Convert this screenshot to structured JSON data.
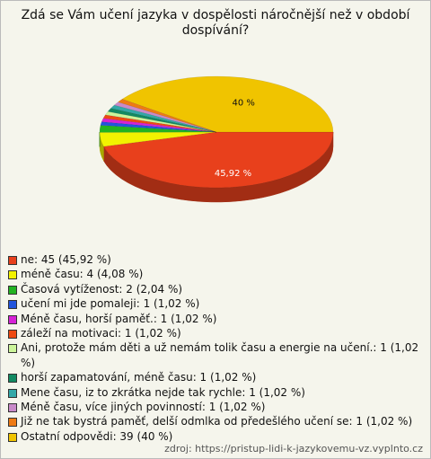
{
  "chart_data": {
    "type": "pie",
    "title": "Zdá se Vám učení jazyka v dospělosti náročnější než v období dospívání?",
    "categories": [
      "ne: 45 (45,92 %)",
      "méně času: 4 (4,08 %)",
      "Časová vytíženost: 2 (2,04 %)",
      "učení mi jde pomaleji: 1 (1,02 %)",
      "Méně času, horší paměť.: 1 (1,02 %)",
      "záleží na motivaci: 1 (1,02 %)",
      "Ani, protože mám děti a už nemám tolik času a energie na učení.: 1 (1,02 %)",
      "horší zapamatování, méně času: 1 (1,02 %)",
      "Mene času, iz to zkrátka nejde tak rychle: 1 (1,02 %)",
      "Méně času, více jiných povinností: 1 (1,02 %)",
      "Již ne tak bystrá paměť, delší odmlka od předešlého učení se: 1 (1,02 %)",
      "Ostatní odpovědi: 39 (40 %)"
    ],
    "values": [
      45.92,
      4.08,
      2.04,
      1.02,
      1.02,
      1.02,
      1.02,
      1.02,
      1.02,
      1.02,
      1.02,
      40
    ],
    "value_labels": [
      "45,92 %",
      null,
      null,
      null,
      null,
      null,
      null,
      null,
      null,
      null,
      null,
      "40 %"
    ],
    "colors": [
      "#e8401c",
      "#f2f200",
      "#22b322",
      "#2255dd",
      "#d622d6",
      "#ee4a12",
      "#ccf59a",
      "#128a62",
      "#33a8a8",
      "#c98ac9",
      "#ee7a14",
      "#f0c400"
    ],
    "source": "zdroj: https://pristup-lidi-k-jazykovemu-vz.vyplnto.cz"
  }
}
